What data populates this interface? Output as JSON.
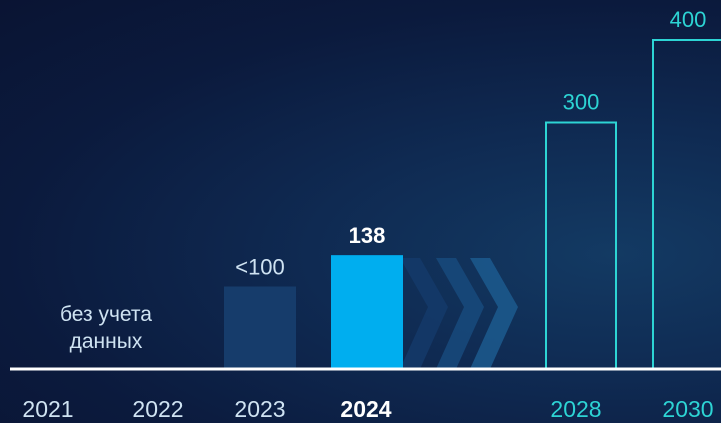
{
  "chart_data": {
    "type": "bar",
    "categories": [
      "2021",
      "2022",
      "2023",
      "2024",
      "2028",
      "2030"
    ],
    "values": [
      null,
      null,
      100,
      138,
      300,
      400
    ],
    "value_labels": [
      "",
      "",
      "<100",
      "138",
      "300",
      "400"
    ],
    "no_data_label": "без учета данных",
    "no_data_lines": [
      "без учета",
      "данных"
    ],
    "highlight_category": "2024",
    "bar_styles": [
      "none",
      "none",
      "dim",
      "highlight",
      "outline",
      "outline"
    ],
    "ylim": [
      0,
      400
    ],
    "grid": false,
    "title": "",
    "xlabel": "",
    "ylabel": ""
  },
  "colors": {
    "background": "#0b1a3d",
    "dim_bar": "#163c6b",
    "highlight_bar": "#00aeef",
    "outline_bar": "#2dd4d4",
    "text": "#ffffff",
    "text_dim": "#cfe3f2",
    "projection_text": "#2dd4d4",
    "baseline": "#ffffff"
  }
}
